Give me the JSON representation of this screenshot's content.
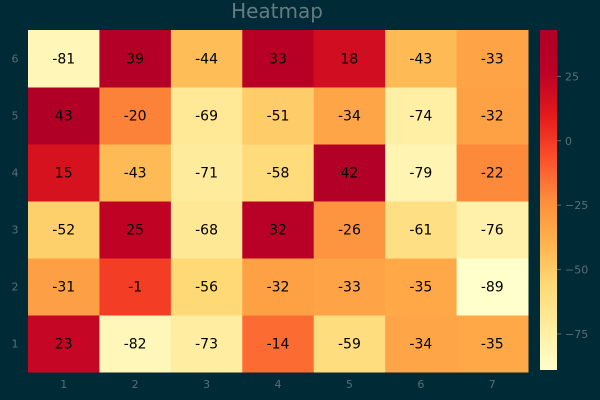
{
  "chart_data": {
    "type": "heatmap",
    "title": "Heatmap",
    "x": [
      1,
      2,
      3,
      4,
      5,
      6,
      7
    ],
    "y": [
      1,
      2,
      3,
      4,
      5,
      6
    ],
    "values": [
      [
        23,
        -82,
        -73,
        -14,
        -59,
        -34,
        -35
      ],
      [
        -31,
        -1,
        -56,
        -32,
        -33,
        -35,
        -89
      ],
      [
        -52,
        25,
        -68,
        32,
        -26,
        -61,
        -76
      ],
      [
        15,
        -43,
        -71,
        -58,
        42,
        -79,
        -22
      ],
      [
        43,
        -20,
        -69,
        -51,
        -34,
        -74,
        -32
      ],
      [
        -81,
        39,
        -44,
        33,
        18,
        -43,
        -33
      ]
    ],
    "zlim": [
      -89,
      43
    ],
    "colorscale": "YlOrRd",
    "colorbar_ticks": [
      -75,
      -50,
      -25,
      0,
      25
    ],
    "colors": {
      "background": "#002b36",
      "title": "#657b83",
      "tick": "#586e75"
    }
  }
}
